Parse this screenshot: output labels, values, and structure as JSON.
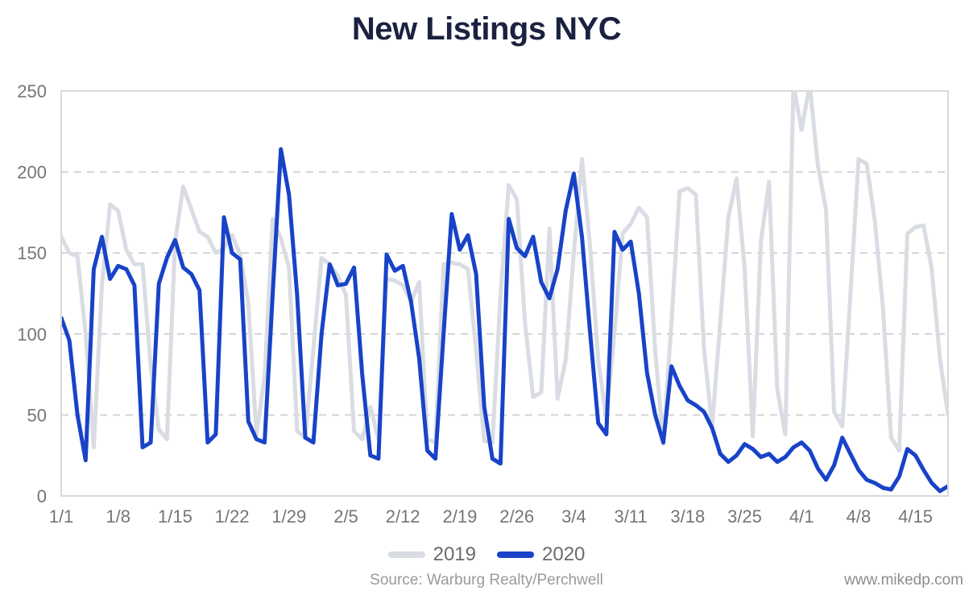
{
  "title": "New Listings NYC",
  "legend": {
    "items": [
      {
        "label": "2019",
        "color": "#d9dce3"
      },
      {
        "label": "2020",
        "color": "#1843c8"
      }
    ]
  },
  "footer": {
    "source": "Source: Warburg Realty/Perchwell",
    "website": "www.mikedp.com"
  },
  "colors": {
    "title": "#1b2140",
    "axis_labels": "#757575",
    "gridline": "#cccccc",
    "plot_border": "#d9d9d9",
    "background": "#ffffff",
    "legend_text": "#6b6b6b",
    "footer_text": "#9a9a9a"
  },
  "chart_data": {
    "type": "line",
    "title": "New Listings NYC",
    "xlabel": "",
    "ylabel": "",
    "ylim": [
      0,
      250
    ],
    "y_ticks": [
      0,
      50,
      100,
      150,
      200,
      250
    ],
    "grid": "horizontal-dashed",
    "legend_position": "bottom-center",
    "clip_note": "2019 line is clipped at the 250 plot top on its 3/31 and 4/2 peaks",
    "x_tick_labels": [
      {
        "label": "1/1",
        "index": 0
      },
      {
        "label": "1/8",
        "index": 7
      },
      {
        "label": "1/15",
        "index": 14
      },
      {
        "label": "1/22",
        "index": 21
      },
      {
        "label": "1/29",
        "index": 28
      },
      {
        "label": "2/5",
        "index": 35
      },
      {
        "label": "2/12",
        "index": 42
      },
      {
        "label": "2/19",
        "index": 49
      },
      {
        "label": "2/26",
        "index": 56
      },
      {
        "label": "3/4",
        "index": 63
      },
      {
        "label": "3/11",
        "index": 70
      },
      {
        "label": "3/18",
        "index": 77
      },
      {
        "label": "3/25",
        "index": 84
      },
      {
        "label": "4/1",
        "index": 91
      },
      {
        "label": "4/8",
        "index": 98
      },
      {
        "label": "4/15",
        "index": 105
      }
    ],
    "dates": [
      "1/1",
      "1/2",
      "1/3",
      "1/4",
      "1/5",
      "1/6",
      "1/7",
      "1/8",
      "1/9",
      "1/10",
      "1/11",
      "1/12",
      "1/13",
      "1/14",
      "1/15",
      "1/16",
      "1/17",
      "1/18",
      "1/19",
      "1/20",
      "1/21",
      "1/22",
      "1/23",
      "1/24",
      "1/25",
      "1/26",
      "1/27",
      "1/28",
      "1/29",
      "1/30",
      "1/31",
      "2/1",
      "2/2",
      "2/3",
      "2/4",
      "2/5",
      "2/6",
      "2/7",
      "2/8",
      "2/9",
      "2/10",
      "2/11",
      "2/12",
      "2/13",
      "2/14",
      "2/15",
      "2/16",
      "2/17",
      "2/18",
      "2/19",
      "2/20",
      "2/21",
      "2/22",
      "2/23",
      "2/24",
      "2/25",
      "2/26",
      "2/27",
      "2/28",
      "2/29",
      "3/1",
      "3/2",
      "3/3",
      "3/4",
      "3/5",
      "3/6",
      "3/7",
      "3/8",
      "3/9",
      "3/10",
      "3/11",
      "3/12",
      "3/13",
      "3/14",
      "3/15",
      "3/16",
      "3/17",
      "3/18",
      "3/19",
      "3/20",
      "3/21",
      "3/22",
      "3/23",
      "3/24",
      "3/25",
      "3/26",
      "3/27",
      "3/28",
      "3/29",
      "3/30",
      "3/31",
      "4/1",
      "4/2",
      "4/3",
      "4/4",
      "4/5",
      "4/6",
      "4/7",
      "4/8",
      "4/9",
      "4/10",
      "4/11",
      "4/12",
      "4/13",
      "4/14",
      "4/15",
      "4/16",
      "4/17",
      "4/18",
      "4/19"
    ],
    "series": [
      {
        "name": "2019",
        "color": "#d9dce3",
        "values": [
          160,
          150,
          148,
          100,
          30,
          130,
          180,
          176,
          152,
          143,
          143,
          80,
          41,
          35,
          157,
          191,
          177,
          163,
          160,
          150,
          153,
          161,
          149,
          119,
          38,
          74,
          171,
          159,
          141,
          40,
          36,
          91,
          147,
          143,
          136,
          124,
          40,
          35,
          55,
          35,
          134,
          133,
          130,
          120,
          132,
          35,
          33,
          143,
          144,
          143,
          140,
          90,
          34,
          33,
          124,
          192,
          183,
          107,
          61,
          64,
          165,
          60,
          84,
          150,
          208,
          154,
          84,
          47,
          101,
          162,
          168,
          178,
          172,
          90,
          32,
          107,
          188,
          190,
          186,
          91,
          43,
          107,
          172,
          196,
          140,
          37,
          157,
          194,
          66,
          38,
          254,
          226,
          254,
          204,
          177,
          52,
          43,
          124,
          208,
          205,
          170,
          116,
          36,
          28,
          162,
          166,
          167,
          140,
          85,
          50
        ]
      },
      {
        "name": "2020",
        "color": "#1843c8",
        "values": [
          110,
          96,
          50,
          22,
          140,
          160,
          134,
          142,
          140,
          130,
          30,
          33,
          131,
          147,
          158,
          141,
          137,
          127,
          33,
          38,
          172,
          150,
          146,
          46,
          35,
          33,
          125,
          214,
          186,
          124,
          36,
          33,
          100,
          143,
          130,
          131,
          141,
          75,
          25,
          23,
          149,
          139,
          142,
          120,
          85,
          28,
          23,
          100,
          174,
          152,
          161,
          137,
          55,
          23,
          20,
          171,
          153,
          148,
          160,
          132,
          122,
          140,
          176,
          199,
          160,
          101,
          45,
          38,
          163,
          152,
          157,
          125,
          76,
          50,
          33,
          80,
          68,
          59,
          56,
          52,
          42,
          26,
          21,
          25,
          32,
          29,
          24,
          26,
          21,
          24,
          30,
          33,
          28,
          17,
          10,
          19,
          36,
          26,
          16,
          10,
          8,
          5,
          4,
          12,
          29,
          25,
          16,
          8,
          3,
          6
        ]
      }
    ]
  }
}
